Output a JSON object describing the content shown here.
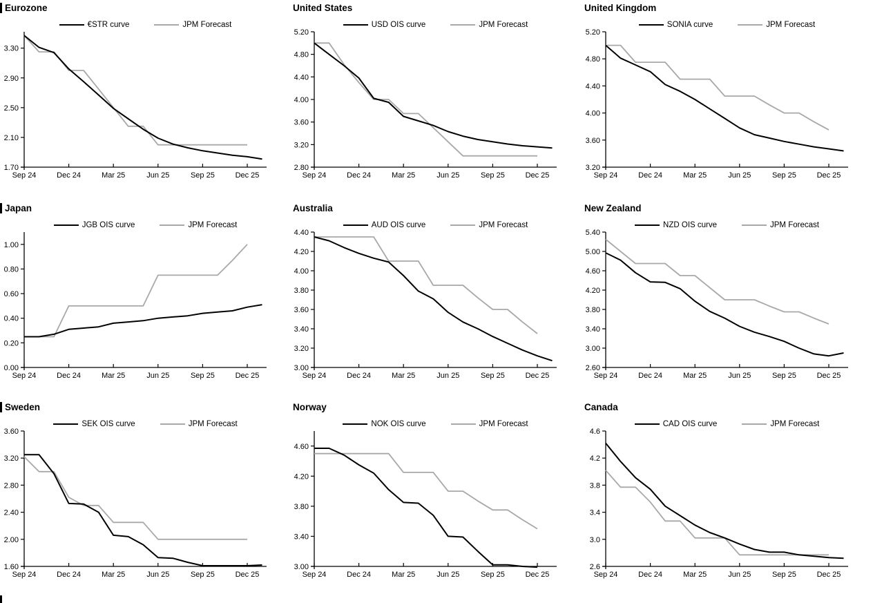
{
  "page": {
    "background": "#ffffff"
  },
  "colors": {
    "market_line": "#000000",
    "forecast_line": "#a8a8a8",
    "axis": "#000000"
  },
  "legend_note": "each panel: dark market OIS curve vs gray JPM Forecast, legend at top",
  "chart_data": [
    {
      "type": "line",
      "title": "Eurozone",
      "xlabel": "",
      "ylabel": "",
      "categories": [
        "Sep 24",
        "Dec 24",
        "Mar 25",
        "Jun 25",
        "Sep 25",
        "Dec 25"
      ],
      "category_months": [
        0,
        3,
        6,
        9,
        12,
        15
      ],
      "ylim": [
        1.7,
        3.52
      ],
      "ytick_labels": [
        "3.30",
        "2.90",
        "2.50",
        "2.10",
        "1.70"
      ],
      "ytick_values": [
        3.3,
        2.9,
        2.5,
        2.1,
        1.7
      ],
      "grid": "off",
      "legend_position": "top",
      "series": [
        {
          "name": "€STR curve",
          "role": "market",
          "values": [
            3.47,
            3.31,
            3.24,
            3.02,
            2.85,
            2.67,
            2.49,
            2.35,
            2.21,
            2.09,
            2.01,
            1.96,
            1.92,
            1.89,
            1.86,
            1.84,
            1.81
          ]
        },
        {
          "name": "JPM Forecast",
          "role": "forecast",
          "values": [
            3.47,
            3.25,
            3.25,
            3.0,
            3.0,
            2.75,
            2.5,
            2.25,
            2.25,
            2.0,
            2.0,
            2.0,
            2.0,
            2.0,
            2.0,
            2.0
          ]
        }
      ]
    },
    {
      "type": "line",
      "title": "United States",
      "xlabel": "",
      "ylabel": "",
      "categories": [
        "Sep 24",
        "Dec 24",
        "Mar 25",
        "Jun 25",
        "Sep 25",
        "Dec 25"
      ],
      "category_months": [
        0,
        3,
        6,
        9,
        12,
        15
      ],
      "ylim": [
        2.8,
        5.2
      ],
      "ytick_labels": [
        "5.20",
        "4.80",
        "4.40",
        "4.00",
        "3.60",
        "3.20",
        "2.80"
      ],
      "ytick_values": [
        5.2,
        4.8,
        4.4,
        4.0,
        3.6,
        3.2,
        2.8
      ],
      "grid": "off",
      "legend_position": "top",
      "series": [
        {
          "name": "USD OIS curve",
          "role": "market",
          "values": [
            5.0,
            4.8,
            4.6,
            4.38,
            4.02,
            3.95,
            3.7,
            3.62,
            3.54,
            3.43,
            3.35,
            3.29,
            3.25,
            3.21,
            3.18,
            3.16,
            3.14
          ]
        },
        {
          "name": "JPM Forecast",
          "role": "forecast",
          "values": [
            5.0,
            5.0,
            4.62,
            4.3,
            4.0,
            4.0,
            3.75,
            3.75,
            3.5,
            3.25,
            3.0,
            3.0,
            3.0,
            3.0,
            3.0,
            3.0
          ]
        }
      ]
    },
    {
      "type": "line",
      "title": "United Kingdom",
      "xlabel": "",
      "ylabel": "",
      "categories": [
        "Sep 24",
        "Dec 24",
        "Mar 25",
        "Jun 25",
        "Sep 25",
        "Dec 25"
      ],
      "category_months": [
        0,
        3,
        6,
        9,
        12,
        15
      ],
      "ylim": [
        3.2,
        5.2
      ],
      "ytick_labels": [
        "5.20",
        "4.80",
        "4.40",
        "4.00",
        "3.60",
        "3.20"
      ],
      "ytick_values": [
        5.2,
        4.8,
        4.4,
        4.0,
        3.6,
        3.2
      ],
      "grid": "off",
      "legend_position": "top",
      "series": [
        {
          "name": "SONIA curve",
          "role": "market",
          "values": [
            5.0,
            4.81,
            4.71,
            4.61,
            4.42,
            4.32,
            4.2,
            4.06,
            3.92,
            3.78,
            3.68,
            3.63,
            3.58,
            3.54,
            3.5,
            3.47,
            3.44
          ]
        },
        {
          "name": "JPM Forecast",
          "role": "forecast",
          "values": [
            5.0,
            5.0,
            4.75,
            4.75,
            4.75,
            4.5,
            4.5,
            4.5,
            4.25,
            4.25,
            4.25,
            4.12,
            4.0,
            4.0,
            3.87,
            3.75
          ]
        }
      ]
    },
    {
      "type": "line",
      "title": "Japan",
      "xlabel": "",
      "ylabel": "",
      "categories": [
        "Sep 24",
        "Dec 24",
        "Mar 25",
        "Jun 25",
        "Sep 25",
        "Dec 25"
      ],
      "category_months": [
        0,
        3,
        6,
        9,
        12,
        15
      ],
      "ylim": [
        0.0,
        1.1
      ],
      "ytick_labels": [
        "1.00",
        "0.80",
        "0.60",
        "0.40",
        "0.20",
        "0.00"
      ],
      "ytick_values": [
        1.0,
        0.8,
        0.6,
        0.4,
        0.2,
        0.0
      ],
      "grid": "off",
      "legend_position": "top",
      "series": [
        {
          "name": "JGB OIS curve",
          "role": "market",
          "values": [
            0.25,
            0.25,
            0.27,
            0.31,
            0.32,
            0.33,
            0.36,
            0.37,
            0.38,
            0.4,
            0.41,
            0.42,
            0.44,
            0.45,
            0.46,
            0.49,
            0.51
          ]
        },
        {
          "name": "JPM Forecast",
          "role": "forecast",
          "values": [
            0.25,
            0.25,
            0.25,
            0.5,
            0.5,
            0.5,
            0.5,
            0.5,
            0.5,
            0.75,
            0.75,
            0.75,
            0.75,
            0.75,
            0.87,
            1.0
          ]
        }
      ]
    },
    {
      "type": "line",
      "title": "Australia",
      "xlabel": "",
      "ylabel": "",
      "categories": [
        "Sep 24",
        "Dec 24",
        "Mar 25",
        "Jun 25",
        "Sep 25",
        "Dec 25"
      ],
      "category_months": [
        0,
        3,
        6,
        9,
        12,
        15
      ],
      "ylim": [
        3.0,
        4.4
      ],
      "ytick_labels": [
        "4.40",
        "4.20",
        "4.00",
        "3.80",
        "3.60",
        "3.40",
        "3.20",
        "3.00"
      ],
      "ytick_values": [
        4.4,
        4.2,
        4.0,
        3.8,
        3.6,
        3.4,
        3.2,
        3.0
      ],
      "grid": "off",
      "legend_position": "top",
      "series": [
        {
          "name": "AUD OIS curve",
          "role": "market",
          "values": [
            4.35,
            4.31,
            4.24,
            4.18,
            4.13,
            4.09,
            3.95,
            3.79,
            3.71,
            3.57,
            3.47,
            3.4,
            3.32,
            3.25,
            3.18,
            3.12,
            3.07
          ]
        },
        {
          "name": "JPM Forecast",
          "role": "forecast",
          "values": [
            4.35,
            4.35,
            4.35,
            4.35,
            4.35,
            4.1,
            4.1,
            4.1,
            3.85,
            3.85,
            3.85,
            3.72,
            3.6,
            3.6,
            3.47,
            3.35
          ]
        }
      ]
    },
    {
      "type": "line",
      "title": "New Zealand",
      "xlabel": "",
      "ylabel": "",
      "categories": [
        "Sep 24",
        "Dec 24",
        "Mar 25",
        "Jun 25",
        "Sep 25",
        "Dec 25"
      ],
      "category_months": [
        0,
        3,
        6,
        9,
        12,
        15
      ],
      "ylim": [
        2.6,
        5.4
      ],
      "ytick_labels": [
        "5.40",
        "5.00",
        "4.60",
        "4.20",
        "3.80",
        "3.40",
        "3.00",
        "2.60"
      ],
      "ytick_values": [
        5.4,
        5.0,
        4.6,
        4.2,
        3.8,
        3.4,
        3.0,
        2.6
      ],
      "grid": "off",
      "legend_position": "top",
      "series": [
        {
          "name": "NZD OIS curve",
          "role": "market",
          "values": [
            4.97,
            4.82,
            4.56,
            4.37,
            4.36,
            4.23,
            3.97,
            3.76,
            3.62,
            3.45,
            3.33,
            3.24,
            3.14,
            3.0,
            2.88,
            2.84,
            2.9
          ]
        },
        {
          "name": "JPM Forecast",
          "role": "forecast",
          "values": [
            5.25,
            5.0,
            4.75,
            4.75,
            4.75,
            4.5,
            4.5,
            4.25,
            4.0,
            4.0,
            4.0,
            3.87,
            3.75,
            3.75,
            3.62,
            3.5
          ]
        }
      ]
    },
    {
      "type": "line",
      "title": "Sweden",
      "xlabel": "",
      "ylabel": "",
      "categories": [
        "Sep 24",
        "Dec 24",
        "Mar 25",
        "Jun 25",
        "Sep 25",
        "Dec 25"
      ],
      "category_months": [
        0,
        3,
        6,
        9,
        12,
        15
      ],
      "ylim": [
        1.6,
        3.6
      ],
      "ytick_labels": [
        "3.60",
        "3.20",
        "2.80",
        "2.40",
        "2.00",
        "1.60"
      ],
      "ytick_values": [
        3.6,
        3.2,
        2.8,
        2.4,
        2.0,
        1.6
      ],
      "grid": "off",
      "legend_position": "top",
      "series": [
        {
          "name": "SEK OIS curve",
          "role": "market",
          "values": [
            3.25,
            3.25,
            2.97,
            2.53,
            2.52,
            2.4,
            2.06,
            2.04,
            1.92,
            1.73,
            1.72,
            1.66,
            1.61,
            1.61,
            1.61,
            1.61,
            1.62
          ]
        },
        {
          "name": "JPM Forecast",
          "role": "forecast",
          "values": [
            3.22,
            3.0,
            3.0,
            2.62,
            2.5,
            2.5,
            2.25,
            2.25,
            2.25,
            2.0,
            2.0,
            2.0,
            2.0,
            2.0,
            2.0,
            2.0
          ]
        }
      ]
    },
    {
      "type": "line",
      "title": "Norway",
      "xlabel": "",
      "ylabel": "",
      "categories": [
        "Sep 24",
        "Dec 24",
        "Mar 25",
        "Jun 25",
        "Sep 25",
        "Dec 25"
      ],
      "category_months": [
        0,
        3,
        6,
        9,
        12,
        15
      ],
      "ylim": [
        3.0,
        4.8
      ],
      "ytick_labels": [
        "4.60",
        "4.20",
        "3.80",
        "3.40",
        "3.00"
      ],
      "ytick_values": [
        4.6,
        4.2,
        3.8,
        3.4,
        3.0
      ],
      "grid": "off",
      "legend_position": "top",
      "series": [
        {
          "name": "NOK OIS curve",
          "role": "market",
          "values": [
            4.57,
            4.57,
            4.48,
            4.35,
            4.24,
            4.02,
            3.85,
            3.84,
            3.68,
            3.4,
            3.39,
            3.2,
            3.02,
            3.02,
            3.0,
            2.99
          ]
        },
        {
          "name": "JPM Forecast",
          "role": "forecast",
          "values": [
            4.5,
            4.5,
            4.5,
            4.5,
            4.5,
            4.5,
            4.25,
            4.25,
            4.25,
            4.0,
            4.0,
            3.87,
            3.75,
            3.75,
            3.62,
            3.5
          ]
        }
      ]
    },
    {
      "type": "line",
      "title": "Canada",
      "xlabel": "",
      "ylabel": "",
      "categories": [
        "Sep 24",
        "Dec 24",
        "Mar 25",
        "Jun 25",
        "Sep 25",
        "Dec 25"
      ],
      "category_months": [
        0,
        3,
        6,
        9,
        12,
        15
      ],
      "ylim": [
        2.6,
        4.6
      ],
      "ytick_labels": [
        "4.6",
        "4.2",
        "3.8",
        "3.4",
        "3.0",
        "2.6"
      ],
      "ytick_values": [
        4.6,
        4.2,
        3.8,
        3.4,
        3.0,
        2.6
      ],
      "grid": "off",
      "legend_position": "top",
      "series": [
        {
          "name": "CAD OIS curve",
          "role": "market",
          "values": [
            4.42,
            4.15,
            3.91,
            3.74,
            3.49,
            3.35,
            3.21,
            3.1,
            3.02,
            2.93,
            2.85,
            2.81,
            2.81,
            2.77,
            2.75,
            2.73,
            2.72
          ]
        },
        {
          "name": "JPM Forecast",
          "role": "forecast",
          "values": [
            4.02,
            3.77,
            3.77,
            3.55,
            3.27,
            3.27,
            3.02,
            3.02,
            3.02,
            2.77,
            2.77,
            2.77,
            2.77,
            2.77,
            2.77,
            2.77
          ]
        }
      ]
    }
  ]
}
